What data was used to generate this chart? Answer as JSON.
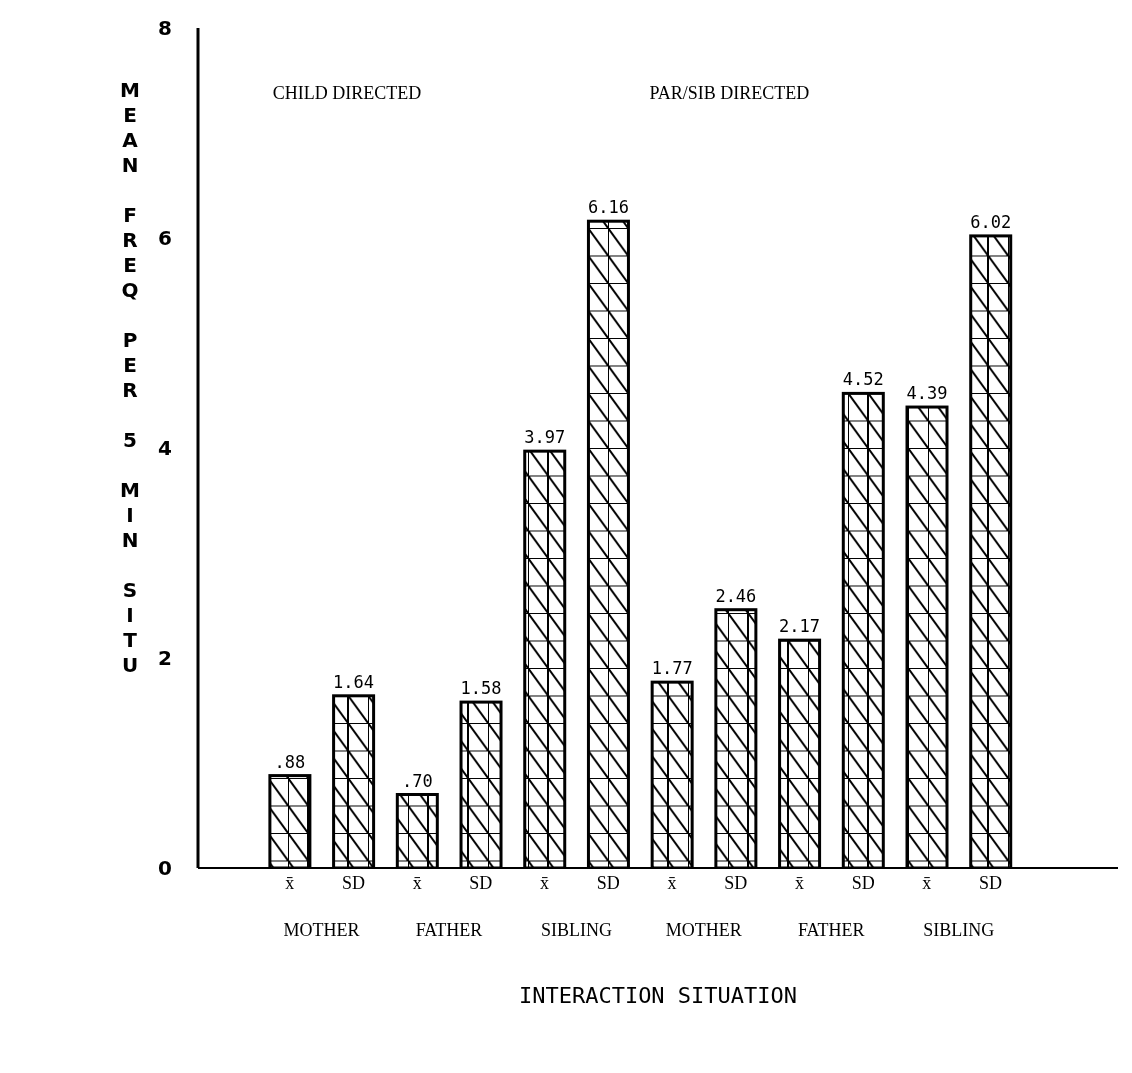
{
  "chart_data": {
    "type": "bar",
    "categories": [
      "x̄",
      "SD",
      "x̄",
      "SD",
      "x̄",
      "SD",
      "x̄",
      "SD",
      "x̄",
      "SD",
      "x̄",
      "SD"
    ],
    "values": [
      0.88,
      1.64,
      0.7,
      1.58,
      3.97,
      6.16,
      1.77,
      2.46,
      2.17,
      4.52,
      4.39,
      6.02
    ],
    "value_labels": [
      ".88",
      "1.64",
      ".70",
      "1.58",
      "3.97",
      "6.16",
      "1.77",
      "2.46",
      "2.17",
      "4.52",
      "4.39",
      "6.02"
    ],
    "color": "#000000",
    "ylim": [
      0,
      8
    ],
    "yticks": [
      0,
      2,
      4,
      6,
      8
    ],
    "ylabel": "MEAN FREQ PER 5 MIN SITU",
    "xlabel": "INTERACTION SITUATION",
    "annotations": [
      "CHILD DIRECTED",
      "PAR/SIB DIRECTED",
      "MOTHER",
      "FATHER",
      "SIBLING",
      "MOTHER",
      "FATHER",
      "SIBLING"
    ],
    "grid": false,
    "legend": false
  }
}
